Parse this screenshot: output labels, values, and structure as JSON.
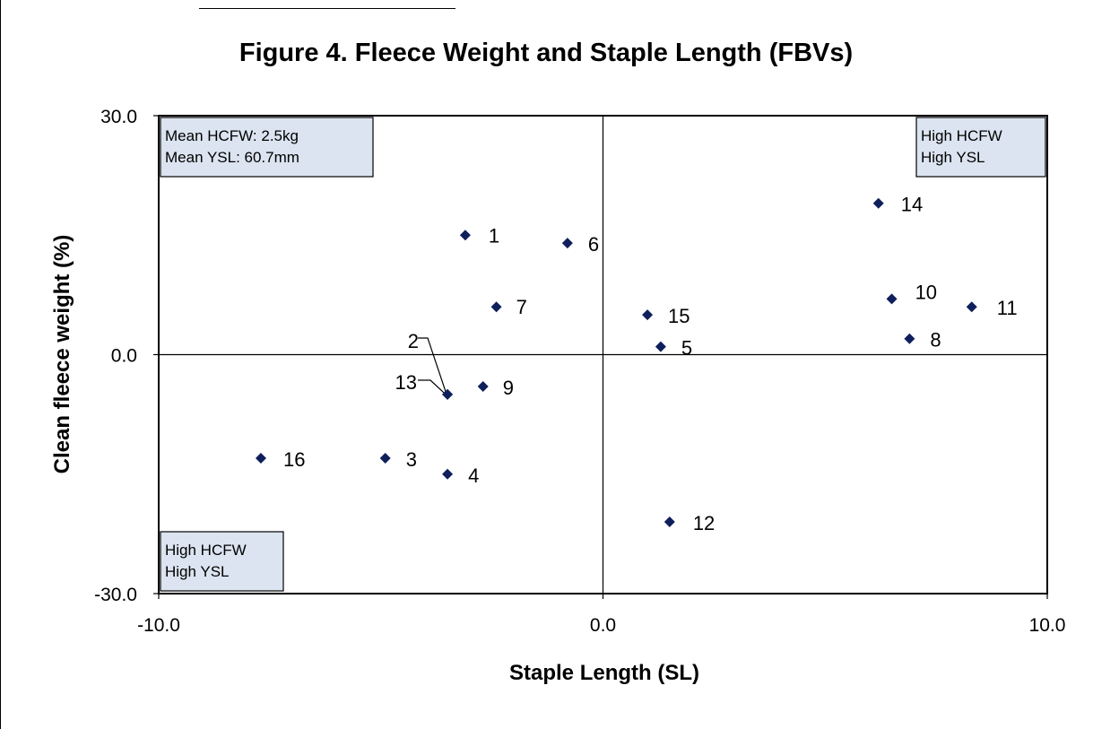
{
  "chart_data": {
    "type": "scatter",
    "title": "Figure 4.  Fleece Weight and Staple Length (FBVs)",
    "xlabel": "Staple Length (SL)",
    "ylabel": "Clean fleece weight  (%)",
    "xlim": [
      -10.0,
      10.0
    ],
    "ylim": [
      -30.0,
      30.0
    ],
    "x_ticks": [
      "-10.0",
      "0.0",
      "10.0"
    ],
    "y_ticks": [
      "30.0",
      "0.0",
      "-30.0"
    ],
    "grid": false,
    "marker_color": "#0f1f5c",
    "quadrant_lines_at": [
      0.0,
      0.0
    ],
    "points": [
      {
        "label": "1",
        "x": -3.1,
        "y": 15.0
      },
      {
        "label": "2",
        "x": -3.5,
        "y": -5.0
      },
      {
        "label": "3",
        "x": -4.9,
        "y": -13.0
      },
      {
        "label": "4",
        "x": -3.5,
        "y": -15.0
      },
      {
        "label": "5",
        "x": 1.3,
        "y": 1.0
      },
      {
        "label": "6",
        "x": -0.8,
        "y": 14.0
      },
      {
        "label": "7",
        "x": -2.4,
        "y": 6.0
      },
      {
        "label": "8",
        "x": 6.9,
        "y": 2.0
      },
      {
        "label": "9",
        "x": -2.7,
        "y": -4.0
      },
      {
        "label": "10",
        "x": 6.5,
        "y": 7.0
      },
      {
        "label": "11",
        "x": 8.3,
        "y": 6.0
      },
      {
        "label": "12",
        "x": 1.5,
        "y": -21.0
      },
      {
        "label": "13",
        "x": -3.5,
        "y": -5.0
      },
      {
        "label": "14",
        "x": 6.2,
        "y": 19.0
      },
      {
        "label": "15",
        "x": 1.0,
        "y": 5.0
      },
      {
        "label": "16",
        "x": -7.7,
        "y": -13.0
      }
    ],
    "annotations": [
      {
        "lines": [
          "Mean HCFW: 2.5kg",
          "Mean YSL: 60.7mm"
        ],
        "position": "top-left"
      },
      {
        "lines": [
          "High HCFW",
          "High YSL"
        ],
        "position": "top-right"
      },
      {
        "lines": [
          "High HCFW",
          "High YSL"
        ],
        "position": "bottom-left"
      }
    ]
  }
}
